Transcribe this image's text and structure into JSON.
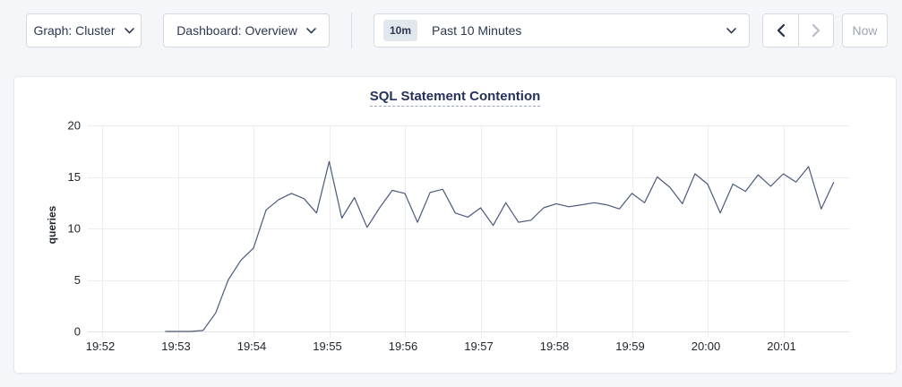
{
  "toolbar": {
    "graph_dropdown": {
      "label": "Graph: Cluster",
      "icon": "chevron-down"
    },
    "dashboard_dropdown": {
      "label": "Dashboard: Overview",
      "icon": "chevron-down"
    },
    "time_range": {
      "badge": "10m",
      "label": "Past 10 Minutes",
      "icon": "chevron-down"
    },
    "prev_button": {
      "icon": "chevron-left",
      "disabled": false
    },
    "next_button": {
      "icon": "chevron-right",
      "disabled": true
    },
    "now_button": {
      "label": "Now",
      "disabled": true
    }
  },
  "colors": {
    "line": "#4b5a7b",
    "grid": "#ededf1",
    "axis_line": "#e2e3e7",
    "tick_text": "#20262e",
    "accent_navy": "#2c3850",
    "disabled_gray": "#b7bec9",
    "title_navy": "#25335b"
  },
  "chart_data": {
    "type": "line",
    "title": "SQL Statement Contention",
    "xlabel": "",
    "ylabel": "queries",
    "ylim": [
      0,
      20
    ],
    "y_ticks": [
      0,
      5,
      10,
      15,
      20
    ],
    "x_ticks": [
      "19:52",
      "19:53",
      "19:54",
      "19:55",
      "19:56",
      "19:57",
      "19:58",
      "19:59",
      "20:00",
      "20:01"
    ],
    "grid": true,
    "legend": "none",
    "series": [
      {
        "name": "queries",
        "x": [
          "19:52:50",
          "19:53:00",
          "19:53:10",
          "19:53:20",
          "19:53:30",
          "19:53:40",
          "19:53:50",
          "19:54:00",
          "19:54:10",
          "19:54:20",
          "19:54:30",
          "19:54:40",
          "19:54:50",
          "19:55:00",
          "19:55:10",
          "19:55:20",
          "19:55:30",
          "19:55:40",
          "19:55:50",
          "19:56:00",
          "19:56:10",
          "19:56:20",
          "19:56:30",
          "19:56:40",
          "19:56:50",
          "19:57:00",
          "19:57:10",
          "19:57:20",
          "19:57:30",
          "19:57:40",
          "19:57:50",
          "19:58:00",
          "19:58:10",
          "19:58:20",
          "19:58:30",
          "19:58:40",
          "19:58:50",
          "19:59:00",
          "19:59:10",
          "19:59:20",
          "19:59:30",
          "19:59:40",
          "19:59:50",
          "20:00:00",
          "20:00:10",
          "20:00:20",
          "20:00:30",
          "20:00:40",
          "20:00:50",
          "20:01:00",
          "20:01:10",
          "20:01:20",
          "20:01:30",
          "20:01:40"
        ],
        "values": [
          0,
          0,
          0,
          0.1,
          1.8,
          5.0,
          6.9,
          8.1,
          11.8,
          12.8,
          13.4,
          12.9,
          11.5,
          16.5,
          11.0,
          13.0,
          10.1,
          12.0,
          13.7,
          13.4,
          10.6,
          13.5,
          13.8,
          11.5,
          11.1,
          12.0,
          10.3,
          12.5,
          10.6,
          10.8,
          12.0,
          12.4,
          12.1,
          12.3,
          12.5,
          12.3,
          11.9,
          13.4,
          12.5,
          15.0,
          14.0,
          12.4,
          15.3,
          14.3,
          11.5,
          14.3,
          13.6,
          15.2,
          14.1,
          15.3,
          14.5,
          16.0,
          11.9,
          14.5
        ]
      }
    ]
  }
}
